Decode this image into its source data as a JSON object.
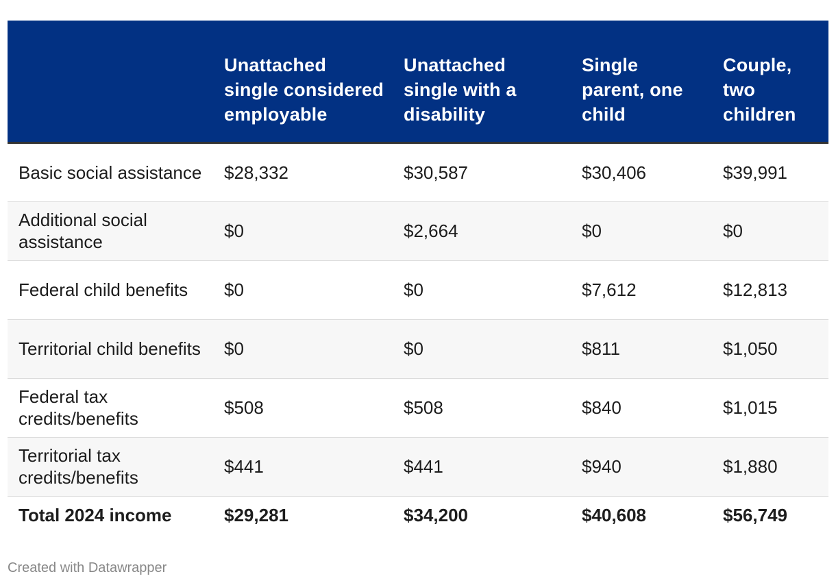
{
  "chart_data": {
    "type": "table",
    "title": "",
    "columns": [
      "",
      "Unattached single considered employable",
      "Unattached single with a disability",
      "Single parent, one child",
      "Couple, two children"
    ],
    "rows": [
      {
        "label": "Basic social assistance",
        "values": [
          "$28,332",
          "$30,587",
          "$30,406",
          "$39,991"
        ]
      },
      {
        "label": "Additional social assistance",
        "values": [
          "$0",
          "$2,664",
          "$0",
          "$0"
        ]
      },
      {
        "label": "Federal child benefits",
        "values": [
          "$0",
          "$0",
          "$7,612",
          "$12,813"
        ]
      },
      {
        "label": "Territorial child benefits",
        "values": [
          "$0",
          "$0",
          "$811",
          "$1,050"
        ]
      },
      {
        "label": "Federal tax credits/benefits",
        "values": [
          "$508",
          "$508",
          "$840",
          "$1,015"
        ]
      },
      {
        "label": "Territorial tax credits/benefits",
        "values": [
          "$441",
          "$441",
          "$940",
          "$1,880"
        ]
      }
    ],
    "total": {
      "label": "Total 2024 income",
      "values": [
        "$29,281",
        "$34,200",
        "$40,608",
        "$56,749"
      ]
    },
    "colors": {
      "header_bg": "#023183",
      "header_text": "#ffffff",
      "stripe": "#f7f7f7"
    }
  },
  "footer": {
    "credit": "Created with Datawrapper"
  }
}
